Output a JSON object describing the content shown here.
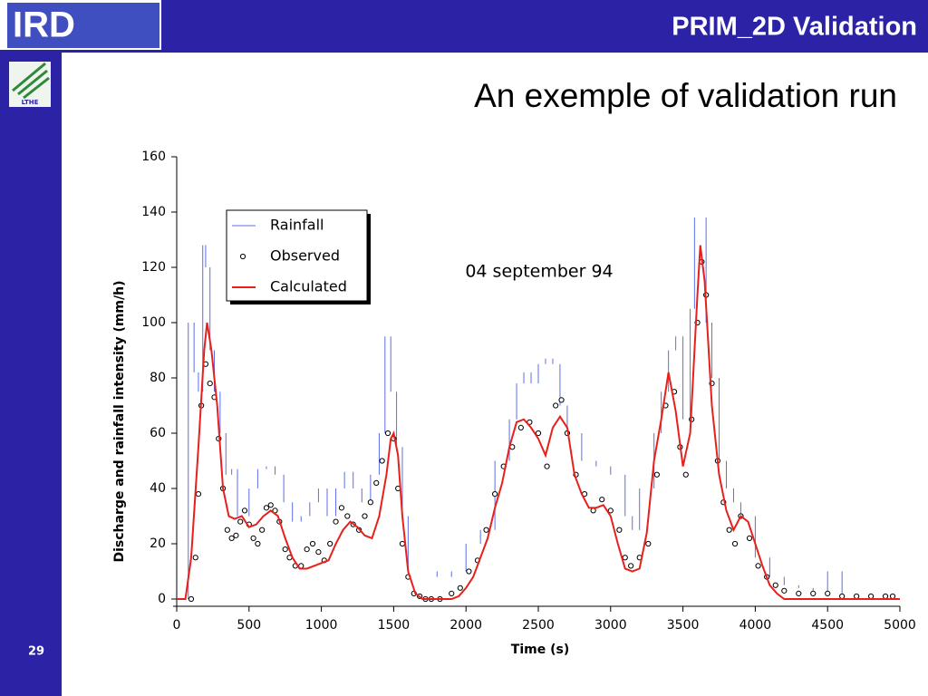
{
  "header": {
    "title": "PRIM_2D Validation",
    "logo": "IRD",
    "sublogo": "LTHE"
  },
  "slide_title": "An exemple of validation run",
  "page_number": "29",
  "chart_data": {
    "type": "line",
    "annotation": "04 september 94",
    "xlabel": "Time  (s)",
    "ylabel": "Discharge and rainfall intensity (mm/h)",
    "xlim": [
      0,
      5000
    ],
    "xticks": [
      0,
      500,
      1000,
      1500,
      2000,
      2500,
      3000,
      3500,
      4000,
      4500,
      5000
    ],
    "ylim": [
      0,
      160
    ],
    "yticks": [
      0,
      20,
      40,
      60,
      80,
      100,
      120,
      140,
      160
    ],
    "legend": "upper left",
    "series": [
      {
        "name": "Rainfall",
        "color": "#5a6ee6",
        "style": "steps",
        "x": [
          80,
          120,
          150,
          180,
          200,
          230,
          260,
          300,
          340,
          380,
          420,
          500,
          560,
          620,
          680,
          740,
          800,
          860,
          920,
          980,
          1040,
          1100,
          1160,
          1220,
          1280,
          1340,
          1400,
          1440,
          1480,
          1520,
          1560,
          1600,
          1700,
          1800,
          1900,
          2000,
          2100,
          2200,
          2300,
          2350,
          2400,
          2450,
          2500,
          2550,
          2600,
          2650,
          2700,
          2800,
          2900,
          3000,
          3100,
          3150,
          3200,
          3300,
          3350,
          3400,
          3450,
          3500,
          3550,
          3580,
          3620,
          3660,
          3700,
          3750,
          3800,
          3850,
          3900,
          4000,
          4100,
          4200,
          4300,
          4400,
          4500,
          4600,
          4800
        ],
        "values": [
          100,
          82,
          75,
          128,
          120,
          90,
          75,
          60,
          45,
          47,
          30,
          40,
          47,
          48,
          45,
          35,
          28,
          30,
          35,
          40,
          30,
          40,
          46,
          40,
          35,
          45,
          60,
          95,
          75,
          55,
          30,
          10,
          10,
          8,
          10,
          20,
          25,
          50,
          65,
          78,
          82,
          78,
          85,
          87,
          85,
          70,
          60,
          50,
          48,
          45,
          30,
          25,
          40,
          60,
          75,
          90,
          95,
          65,
          105,
          138,
          138,
          100,
          80,
          50,
          40,
          35,
          30,
          15,
          8,
          5,
          4,
          3,
          10,
          2,
          1
        ]
      },
      {
        "name": "Observed",
        "color": "#000000",
        "style": "markers",
        "x": [
          100,
          130,
          150,
          170,
          200,
          230,
          260,
          290,
          320,
          350,
          380,
          410,
          440,
          470,
          500,
          530,
          560,
          590,
          620,
          650,
          680,
          710,
          750,
          780,
          820,
          860,
          900,
          940,
          980,
          1020,
          1060,
          1100,
          1140,
          1180,
          1220,
          1260,
          1300,
          1340,
          1380,
          1420,
          1460,
          1500,
          1530,
          1560,
          1600,
          1640,
          1680,
          1720,
          1760,
          1820,
          1900,
          1960,
          2020,
          2080,
          2140,
          2200,
          2260,
          2320,
          2380,
          2440,
          2500,
          2560,
          2620,
          2660,
          2700,
          2760,
          2820,
          2880,
          2940,
          3000,
          3060,
          3100,
          3140,
          3200,
          3260,
          3320,
          3380,
          3440,
          3480,
          3520,
          3560,
          3600,
          3630,
          3660,
          3700,
          3740,
          3780,
          3820,
          3860,
          3900,
          3960,
          4020,
          4080,
          4140,
          4200,
          4300,
          4400,
          4500,
          4600,
          4700,
          4800,
          4900,
          4950
        ],
        "values": [
          0,
          15,
          38,
          70,
          85,
          78,
          73,
          58,
          40,
          25,
          22,
          23,
          28,
          32,
          27,
          22,
          20,
          25,
          33,
          34,
          32,
          28,
          18,
          15,
          12,
          12,
          18,
          20,
          17,
          14,
          20,
          28,
          33,
          30,
          27,
          25,
          30,
          35,
          42,
          50,
          60,
          58,
          40,
          20,
          8,
          2,
          1,
          0,
          0,
          0,
          2,
          4,
          10,
          14,
          25,
          38,
          48,
          55,
          62,
          64,
          60,
          48,
          70,
          72,
          60,
          45,
          38,
          32,
          36,
          32,
          25,
          15,
          12,
          15,
          20,
          45,
          70,
          75,
          55,
          45,
          65,
          100,
          122,
          110,
          78,
          50,
          35,
          25,
          20,
          30,
          22,
          12,
          8,
          5,
          3,
          2,
          2,
          2,
          1,
          1,
          1,
          1,
          1
        ]
      },
      {
        "name": "Calculated",
        "color": "#e8201c",
        "style": "line",
        "x": [
          0,
          60,
          100,
          150,
          190,
          210,
          240,
          280,
          320,
          360,
          400,
          450,
          500,
          550,
          600,
          650,
          700,
          750,
          800,
          850,
          900,
          950,
          1000,
          1050,
          1100,
          1150,
          1200,
          1250,
          1300,
          1350,
          1400,
          1450,
          1480,
          1500,
          1530,
          1560,
          1600,
          1650,
          1700,
          1850,
          1900,
          1950,
          2000,
          2050,
          2100,
          2150,
          2200,
          2250,
          2300,
          2350,
          2400,
          2450,
          2500,
          2550,
          2600,
          2650,
          2700,
          2750,
          2800,
          2850,
          2900,
          2950,
          3000,
          3050,
          3100,
          3150,
          3200,
          3250,
          3300,
          3350,
          3400,
          3450,
          3500,
          3550,
          3600,
          3620,
          3650,
          3700,
          3750,
          3800,
          3850,
          3900,
          3950,
          4000,
          4050,
          4100,
          4150,
          4200,
          5000
        ],
        "values": [
          0,
          0,
          15,
          55,
          90,
          100,
          90,
          70,
          40,
          30,
          29,
          30,
          26,
          27,
          30,
          32,
          30,
          22,
          15,
          11,
          11,
          12,
          13,
          14,
          20,
          25,
          28,
          26,
          23,
          22,
          30,
          45,
          58,
          60,
          52,
          30,
          10,
          2,
          0,
          0,
          0,
          1,
          4,
          8,
          15,
          22,
          33,
          42,
          55,
          64,
          65,
          62,
          58,
          52,
          62,
          66,
          62,
          45,
          38,
          33,
          33,
          34,
          30,
          20,
          11,
          10,
          11,
          24,
          50,
          65,
          82,
          68,
          48,
          60,
          110,
          128,
          115,
          70,
          45,
          32,
          25,
          30,
          28,
          20,
          12,
          5,
          2,
          0,
          0
        ]
      }
    ]
  }
}
